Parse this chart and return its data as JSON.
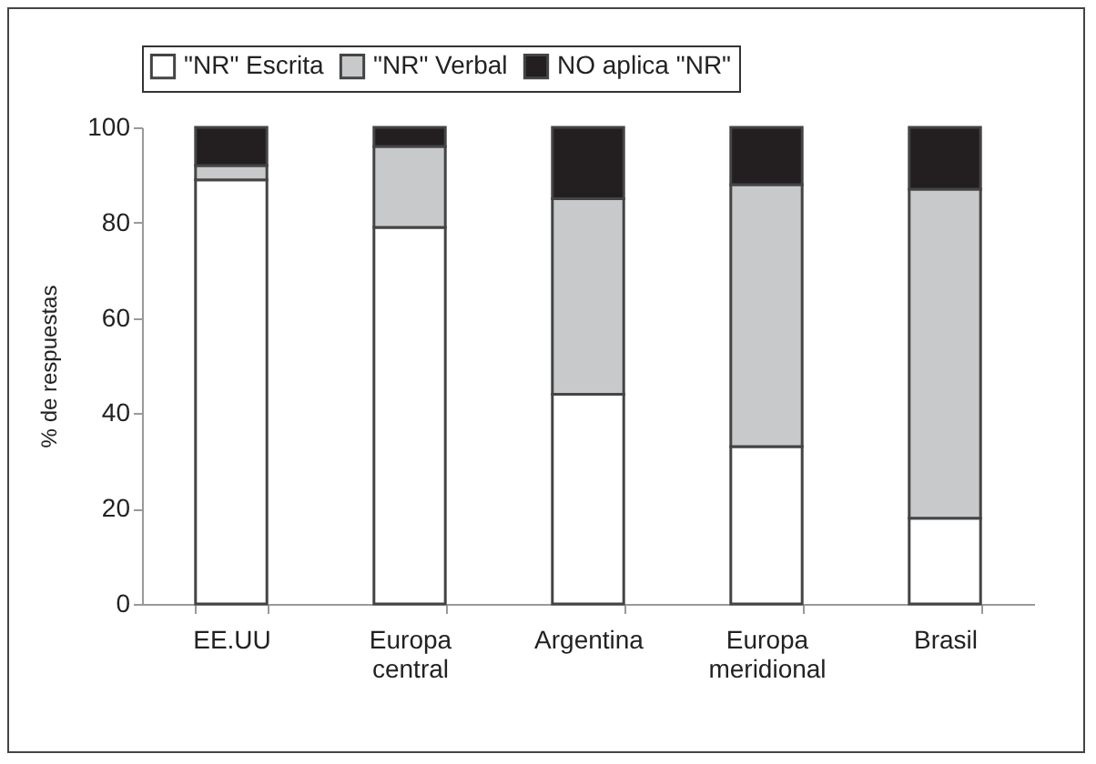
{
  "chart_data": {
    "type": "bar",
    "stacked": true,
    "ylabel": "% de respuestas",
    "categories": [
      "EE.UU",
      "Europa central",
      "Argentina",
      "Europa meridional",
      "Brasil"
    ],
    "series": [
      {
        "name": "\"NR\" Escrita",
        "color": "#ffffff",
        "values": [
          89,
          79,
          44,
          33,
          18
        ]
      },
      {
        "name": "\"NR\" Verbal",
        "color": "#c8c9cb",
        "values": [
          3,
          17,
          41,
          55,
          69
        ]
      },
      {
        "name": "NO aplica \"NR\"",
        "color": "#231f20",
        "values": [
          8,
          4,
          15,
          12,
          13
        ]
      }
    ],
    "ylim": [
      0,
      100
    ],
    "yticks": [
      0,
      20,
      40,
      60,
      80,
      100
    ],
    "grid": false,
    "legend": "top"
  }
}
